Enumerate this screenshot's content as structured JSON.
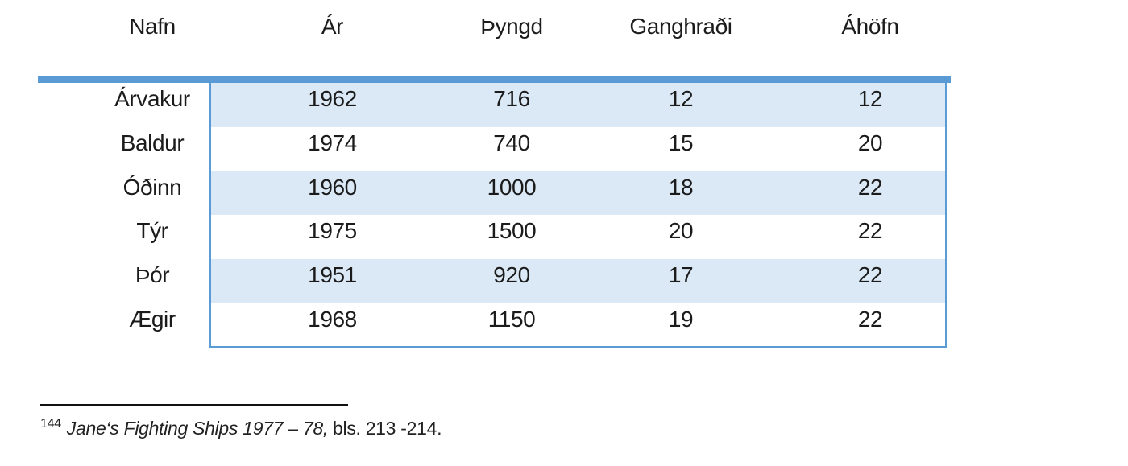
{
  "table": {
    "headers": [
      "Nafn",
      "Ár",
      "Þyngd",
      "Ganghraði",
      "Áhöfn"
    ],
    "rows": [
      {
        "name": "Árvakur",
        "year": "1962",
        "weight": "716",
        "speed": "12",
        "crew": "12"
      },
      {
        "name": "Baldur",
        "year": "1974",
        "weight": "740",
        "speed": "15",
        "crew": "20"
      },
      {
        "name": "Óðinn",
        "year": "1960",
        "weight": "1000",
        "speed": "18",
        "crew": "22"
      },
      {
        "name": "Týr",
        "year": "1975",
        "weight": "1500",
        "speed": "20",
        "crew": "22"
      },
      {
        "name": "Þór",
        "year": "1951",
        "weight": "920",
        "speed": "17",
        "crew": "22"
      },
      {
        "name": "Ægir",
        "year": "1968",
        "weight": "1150",
        "speed": "19",
        "crew": "22"
      }
    ]
  },
  "footnote": {
    "marker": "144",
    "source": "Jane‘s Fighting Ships 1977 – 78,",
    "pages": " bls. 213 -214."
  },
  "colors": {
    "accent_bar": "#5B9BD5",
    "row_stripe": "#DBE9F6",
    "table_border": "#5B9BD5",
    "footnote_rule": "#111111"
  }
}
